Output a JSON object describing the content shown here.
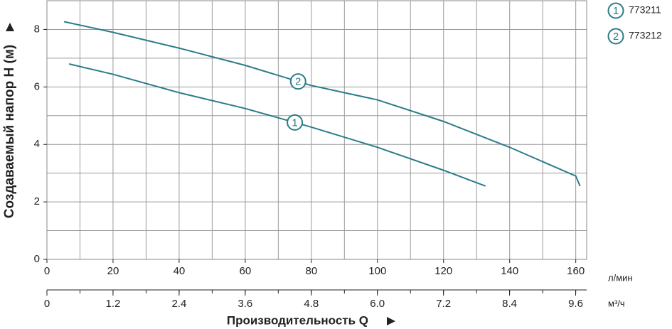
{
  "chart_data": {
    "type": "line",
    "ylabel": "Создаваемый напор H (м)",
    "xlabel": "Производительность Q",
    "x_unit": "л/мин",
    "x2_unit": "м³/ч",
    "xlim": [
      0,
      163.3
    ],
    "xticks": [
      0,
      20,
      40,
      60,
      80,
      100,
      120,
      140,
      160
    ],
    "grid_xticks": [
      0,
      10,
      20,
      30,
      40,
      50,
      60,
      70,
      80,
      90,
      100,
      110,
      120,
      130,
      140,
      150,
      160
    ],
    "ylim": [
      0,
      9
    ],
    "yticks": [
      0,
      2,
      4,
      6,
      8
    ],
    "grid_yticks": [
      0,
      1,
      2,
      3,
      4,
      5,
      6,
      7,
      8,
      9
    ],
    "x2lim": [
      0,
      9.8
    ],
    "x2ticks": [
      0,
      1.2,
      2.4,
      3.6,
      4.8,
      {
        "value": 6,
        "label": "6.0"
      },
      7.2,
      8.4,
      9.6
    ],
    "grid": true,
    "series": [
      {
        "name": "773211",
        "marker": "1",
        "marker_x": 75,
        "color": "#2b7c89",
        "x": [
          6.7,
          20,
          40,
          60,
          80,
          100,
          120,
          132.7
        ],
        "values": [
          6.8,
          6.44,
          5.8,
          5.25,
          4.6,
          3.9,
          3.1,
          2.55
        ]
      },
      {
        "name": "773212",
        "marker": "2",
        "marker_x": 76,
        "color": "#2b7c89",
        "x": [
          5.2,
          20,
          40,
          60,
          80,
          100,
          120,
          140,
          160,
          161.3
        ],
        "values": [
          8.27,
          7.9,
          7.35,
          6.75,
          6.05,
          5.55,
          4.8,
          3.9,
          2.9,
          2.55
        ]
      }
    ]
  }
}
